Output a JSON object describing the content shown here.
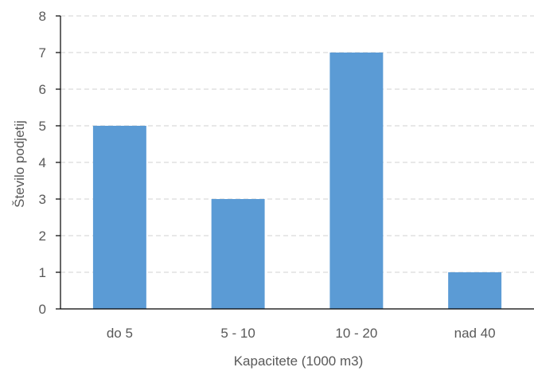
{
  "chart_data": {
    "type": "bar",
    "title": "",
    "xlabel": "Kapacitete (1000 m3)",
    "ylabel": "Število podjetij",
    "categories": [
      "do 5",
      "5 - 10",
      "10 - 20",
      "nad 40"
    ],
    "values": [
      5,
      3,
      7,
      1
    ],
    "ylim": [
      0,
      8
    ],
    "yticks": [
      "0",
      "1",
      "2",
      "3",
      "4",
      "5",
      "6",
      "7",
      "8"
    ],
    "grid": true,
    "legend": "none",
    "colors": {
      "bar": "#5b9bd5",
      "grid": "#d9d9d9",
      "axis": "#000000",
      "text": "#595959"
    }
  }
}
